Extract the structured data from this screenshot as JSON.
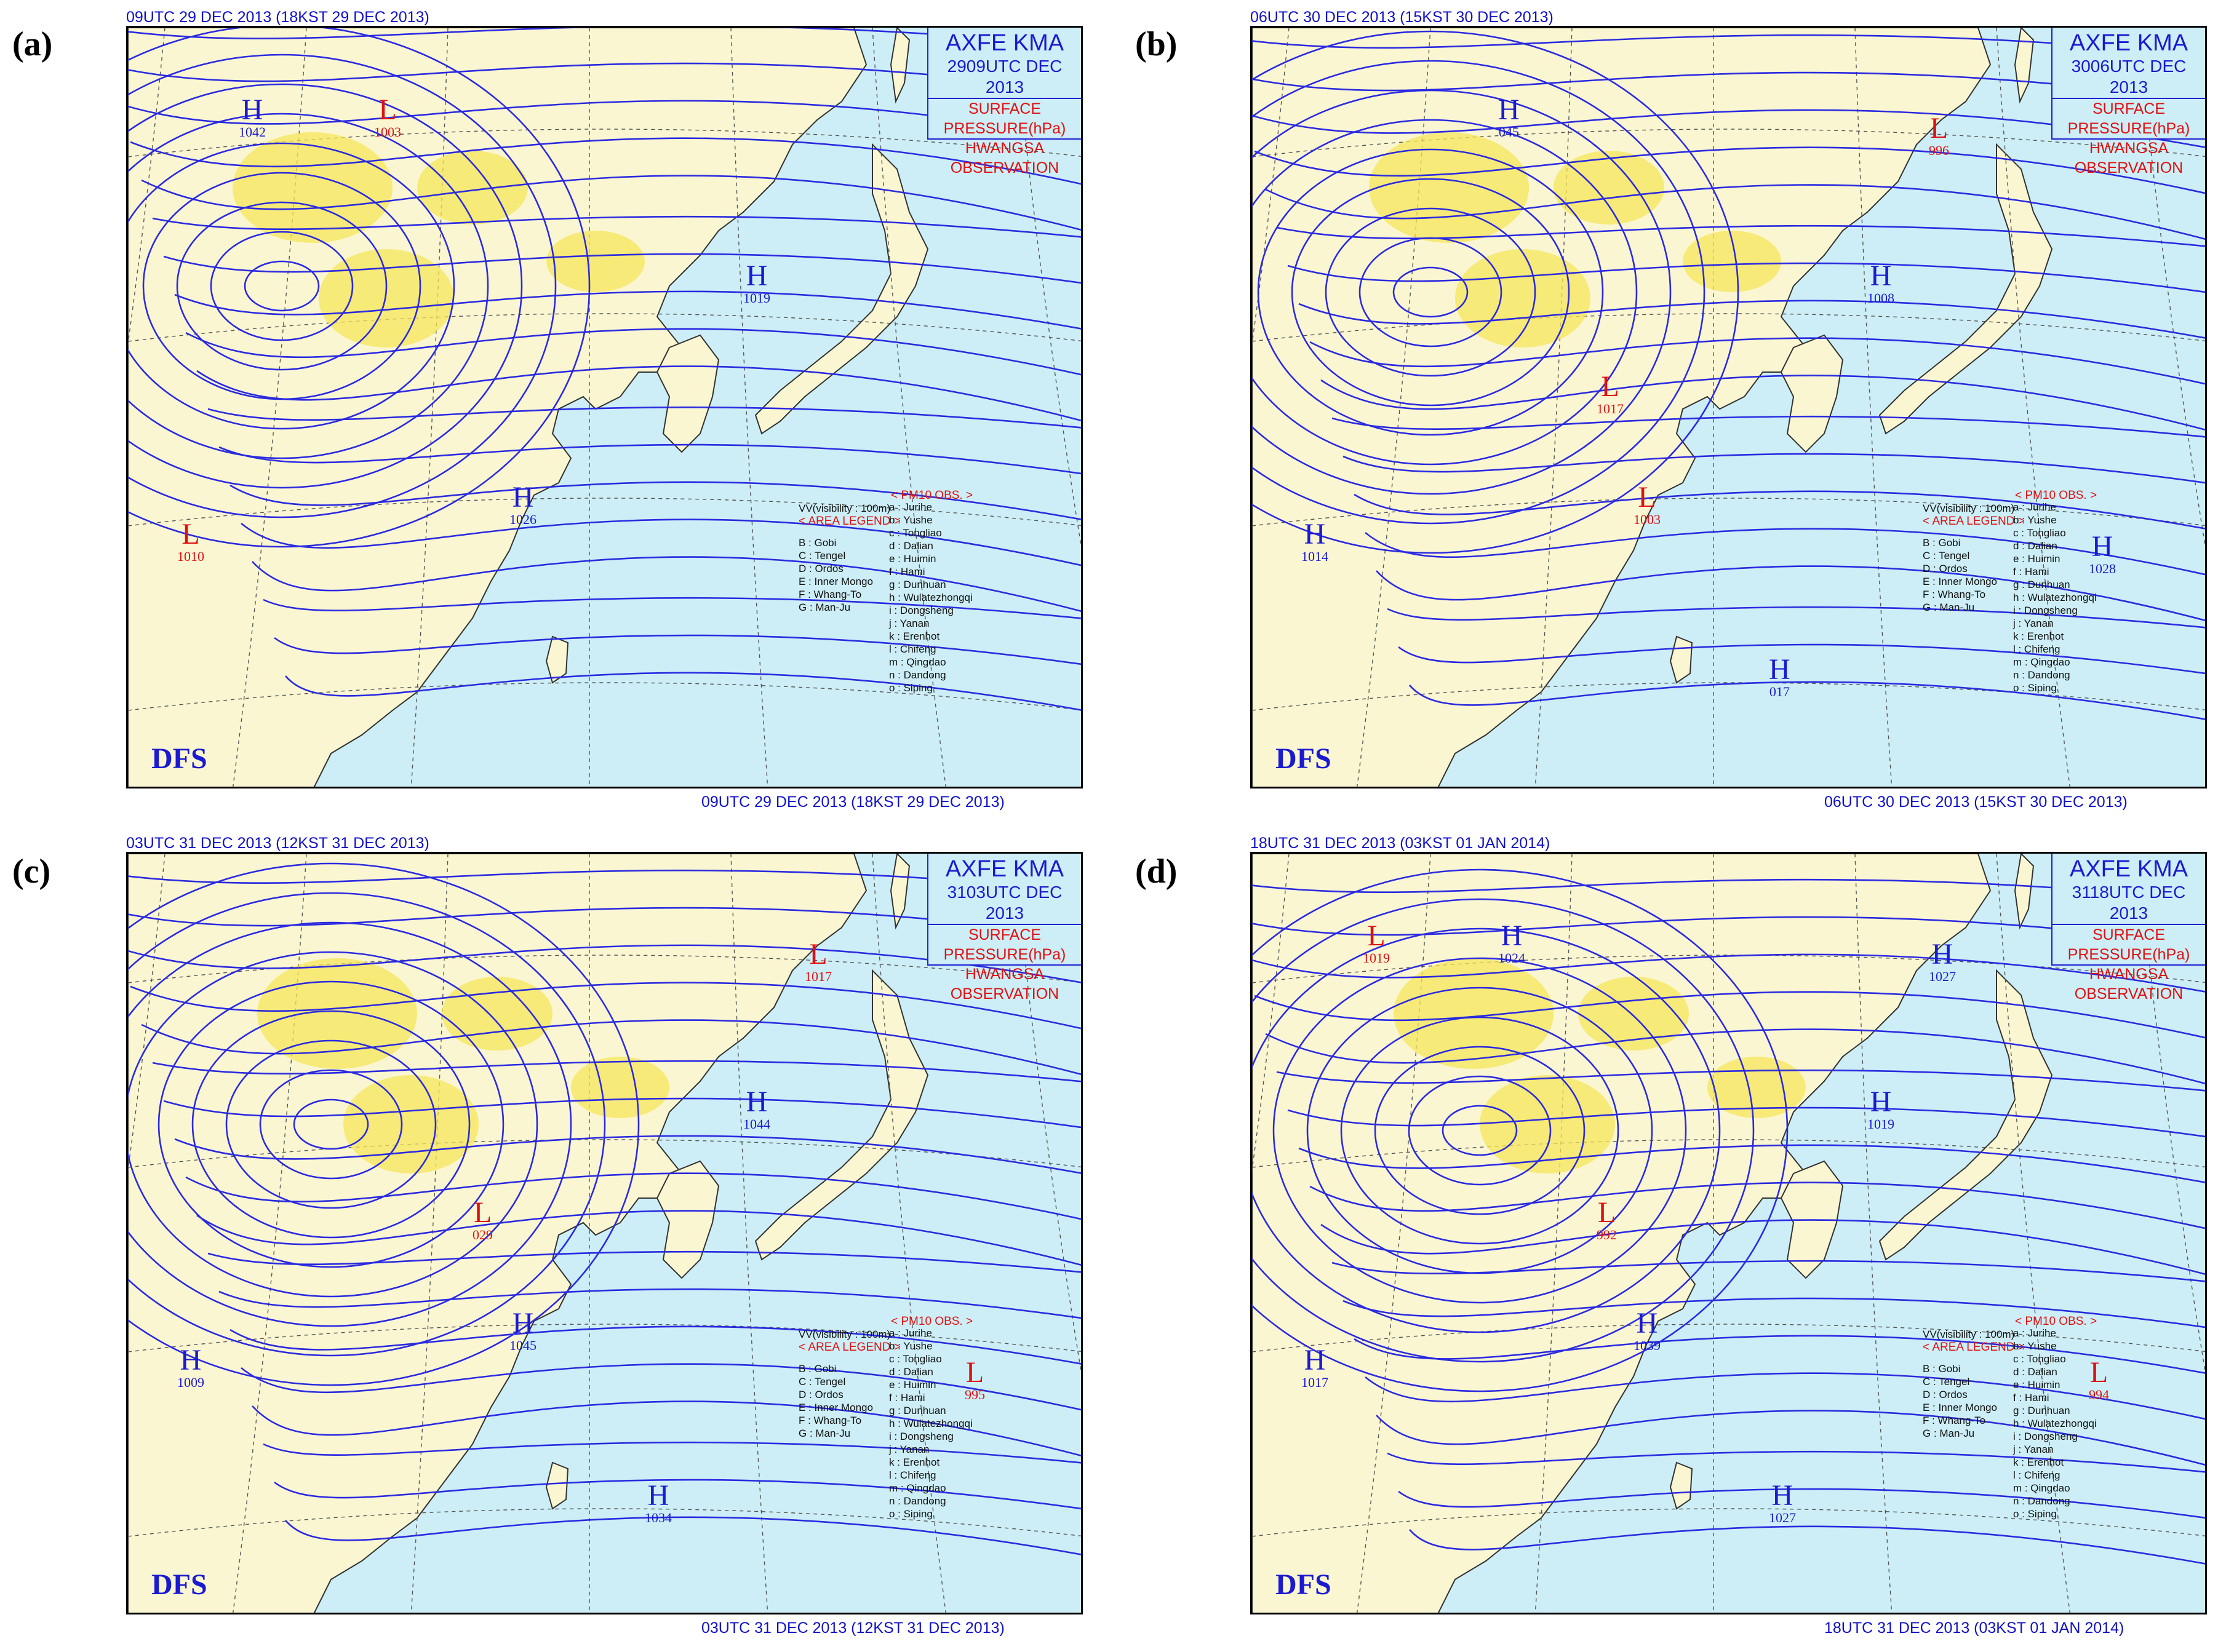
{
  "header": {
    "agency": "AXFE  KMA",
    "product": "SURFACE PRESSURE(hPa)",
    "observation": "HWANGSA OBSERVATION",
    "logo": "DFS"
  },
  "colors": {
    "sea": "#cdeef6",
    "land": "#fbf6d2",
    "isobar": "#2a2ae0",
    "high": "#1a1ad0",
    "low": "#e01010",
    "dust": "#f5e65a"
  },
  "legend": {
    "vv_label": "VV(visibility : 100m)",
    "pm10_title": "< PM10 OBS. >",
    "area_title": "< AREA LEGEND >",
    "pm10_stations": [
      "a : Jurihe",
      "b : Yushe",
      "c : Tongliao",
      "d : Dalian",
      "e : Huimin",
      "f : Hami",
      "g : Dunhuan",
      "h : Wulatezhongqi",
      "i : Dongsheng",
      "j : Yanan",
      "k : Erenhot",
      "l : Chifeng",
      "m : Qingdao",
      "n : Dandong",
      "o : Siping"
    ],
    "areas": [
      "B : Gobi",
      "C : Tengel",
      "D : Ordos",
      "E : Inner Mongo",
      "F : Whang-To",
      "G : Man-Ju"
    ]
  },
  "panels": [
    {
      "letter": "(a)",
      "top_caption": "09UTC 29 DEC 2013 (18KST 29 DEC 2013)",
      "bottom_caption": "09UTC 29 DEC 2013 (18KST 29 DEC 2013)",
      "valid": "2909UTC DEC 2013",
      "centers": [
        {
          "type": "H",
          "value": "1042"
        },
        {
          "type": "L",
          "value": "1003"
        },
        {
          "type": "H",
          "value": "1019"
        },
        {
          "type": "H",
          "value": "1026"
        },
        {
          "type": "L",
          "value": "1010"
        }
      ]
    },
    {
      "letter": "(b)",
      "top_caption": "06UTC 30 DEC 2013 (15KST 30 DEC 2013)",
      "bottom_caption": "06UTC 30 DEC 2013 (15KST 30 DEC 2013)",
      "valid": "3006UTC DEC 2013",
      "centers": [
        {
          "type": "H",
          "value": "045"
        },
        {
          "type": "H",
          "value": "1008"
        },
        {
          "type": "L",
          "value": "1003"
        },
        {
          "type": "H",
          "value": "1014"
        },
        {
          "type": "H",
          "value": "1028"
        },
        {
          "type": "L",
          "value": "1017"
        },
        {
          "type": "H",
          "value": "017"
        },
        {
          "type": "L",
          "value": "996"
        }
      ]
    },
    {
      "letter": "(c)",
      "top_caption": "03UTC 31 DEC 2013 (12KST 31 DEC 2013)",
      "bottom_caption": "03UTC 31 DEC 2013 (12KST 31 DEC 2013)",
      "valid": "3103UTC DEC 2013",
      "centers": [
        {
          "type": "H",
          "value": "1044"
        },
        {
          "type": "H",
          "value": "1045"
        },
        {
          "type": "H",
          "value": "1009"
        },
        {
          "type": "L",
          "value": "995"
        },
        {
          "type": "L",
          "value": "029"
        },
        {
          "type": "H",
          "value": "1034"
        },
        {
          "type": "L",
          "value": "1017"
        }
      ]
    },
    {
      "letter": "(d)",
      "top_caption": "18UTC 31 DEC 2013 (03KST 01 JAN 2014)",
      "bottom_caption": "18UTC 31 DEC 2013 (03KST 01 JAN 2014)",
      "valid": "3118UTC DEC 2013",
      "centers": [
        {
          "type": "H",
          "value": "1039"
        },
        {
          "type": "H",
          "value": "1017"
        },
        {
          "type": "L",
          "value": "994"
        },
        {
          "type": "L",
          "value": "992"
        },
        {
          "type": "H",
          "value": "1027"
        },
        {
          "type": "H",
          "value": "1027"
        },
        {
          "type": "L",
          "value": "1019"
        },
        {
          "type": "H",
          "value": "1024"
        },
        {
          "type": "H",
          "value": "1019"
        }
      ]
    }
  ]
}
